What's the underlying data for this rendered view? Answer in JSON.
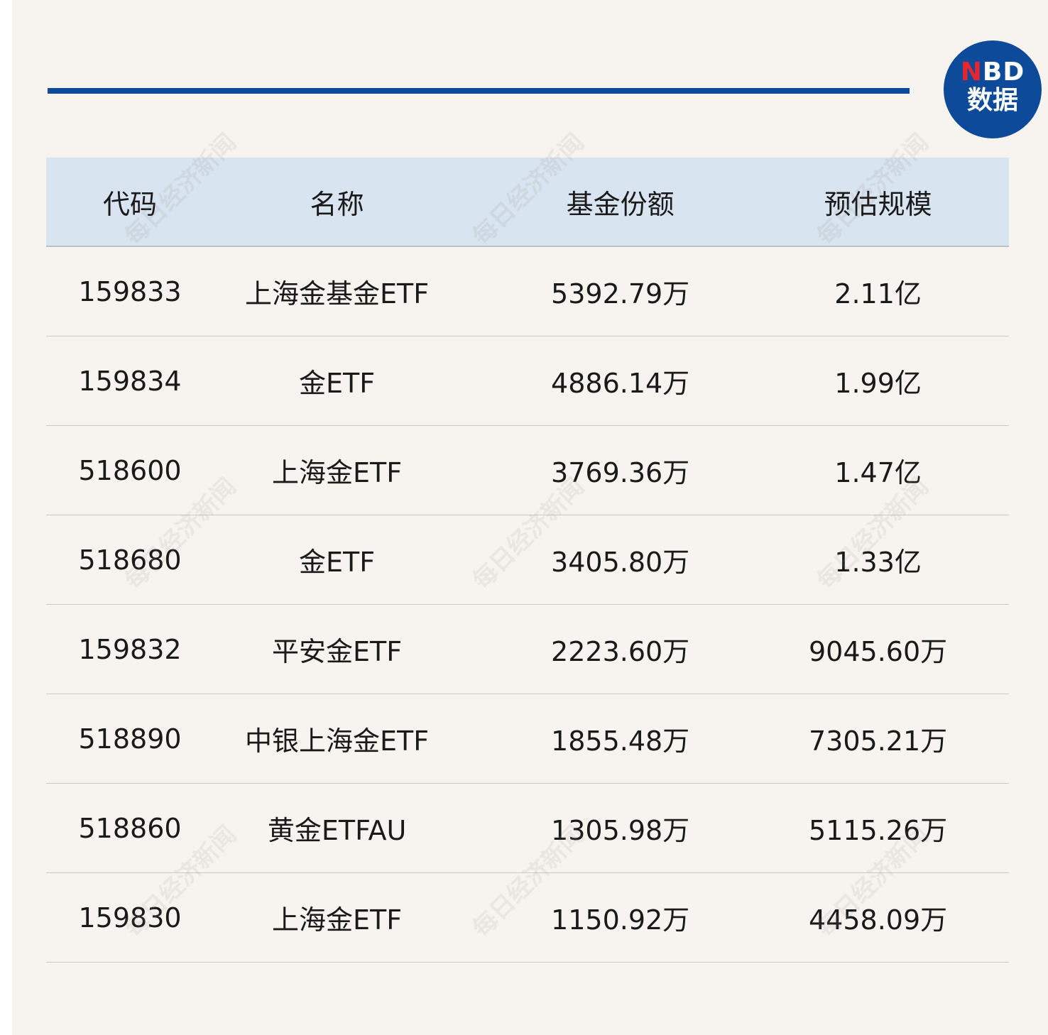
{
  "logo": {
    "n": "N",
    "bd": "BD",
    "sub": "数据",
    "brand_color": "#0d4a9a",
    "accent": "#e8252f"
  },
  "watermark": "每日经济新闻",
  "table": {
    "headers": [
      "代码",
      "名称",
      "基金份额",
      "预估规模"
    ],
    "rows": [
      [
        "159833",
        "上海金基金ETF",
        "5392.79万",
        "2.11亿"
      ],
      [
        "159834",
        "金ETF",
        "4886.14万",
        "1.99亿"
      ],
      [
        "518600",
        "上海金ETF",
        "3769.36万",
        "1.47亿"
      ],
      [
        "518680",
        "金ETF",
        "3405.80万",
        "1.33亿"
      ],
      [
        "159832",
        "平安金ETF",
        "2223.60万",
        "9045.60万"
      ],
      [
        "518890",
        "中银上海金ETF",
        "1855.48万",
        "7305.21万"
      ],
      [
        "518860",
        "黄金ETFAU",
        "1305.98万",
        "5115.26万"
      ],
      [
        "159830",
        "上海金ETF",
        "1150.92万",
        "4458.09万"
      ]
    ]
  }
}
